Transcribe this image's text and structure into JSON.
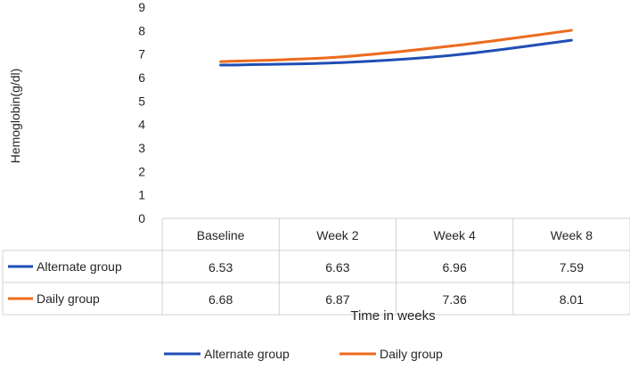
{
  "chart_data": {
    "type": "line",
    "ylabel": "Hemoglobin(g/dl)",
    "xlabel": "Time in weeks",
    "ylim": [
      0,
      9
    ],
    "yticks": [
      "0",
      "1",
      "2",
      "3",
      "4",
      "5",
      "6",
      "7",
      "8",
      "9"
    ],
    "categories": [
      "Baseline",
      "Week 2",
      "Week 4",
      "Week 8"
    ],
    "series": [
      {
        "name": "Alternate group",
        "color": "#1f4eb4",
        "values": [
          6.53,
          6.63,
          6.96,
          7.59
        ],
        "labels": [
          "6.53",
          "6.63",
          "6.96",
          "7.59"
        ]
      },
      {
        "name": "Daily group",
        "color": "#ed6b1f",
        "values": [
          6.68,
          6.87,
          7.36,
          8.01
        ],
        "labels": [
          "6.68",
          "6.87",
          "7.36",
          "8.01"
        ]
      }
    ],
    "grid": false,
    "legend": "bottom",
    "table_below": true
  }
}
